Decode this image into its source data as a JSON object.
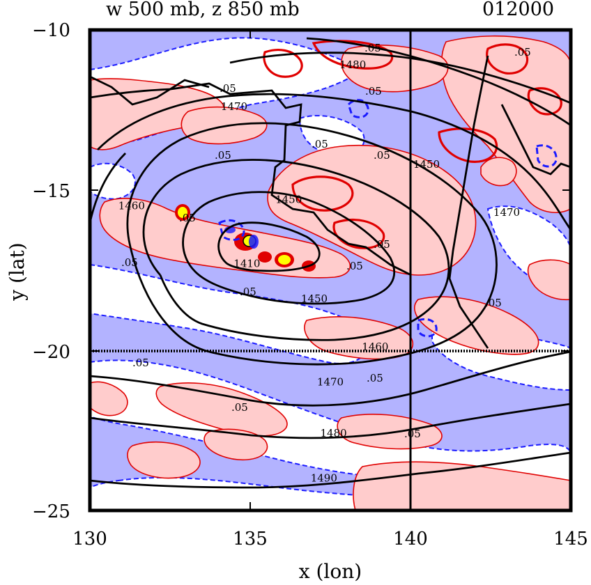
{
  "title_left": "w 500 mb, z 850 mb",
  "title_right": "012000",
  "x_axis": {
    "label": "x (lon)",
    "ticks": [
      "130",
      "135",
      "140",
      "145"
    ],
    "range": [
      130,
      145
    ]
  },
  "y_axis": {
    "label": "y (lat)",
    "ticks": [
      "−10",
      "−15",
      "−20",
      "−25"
    ],
    "range": [
      -25,
      -10
    ]
  },
  "reference_lines": {
    "lon": 140,
    "lat": -20
  },
  "colors": {
    "upward_fill": "#ffcccc",
    "downward_fill": "#b3b3ff",
    "upward_contour": "#e00000",
    "downward_contour": "#1a1aff",
    "height_contour": "#000000",
    "strong_upward": "#ffff00"
  },
  "w_contour_labels": [
    ".05",
    ".05",
    ".05",
    ".05",
    ".05",
    ".05",
    ".05",
    ".05",
    ".05",
    ".05",
    ".05",
    ".05",
    ".05",
    ".05",
    ".05",
    ".05",
    ".05"
  ],
  "height_contours": [
    {
      "value": "1410",
      "label_lon": 134.9,
      "label_lat": -17.4
    },
    {
      "value": "1450",
      "label_lon": 137.0,
      "label_lat": -18.5
    },
    {
      "value": "1460",
      "label_lon": 138.9,
      "label_lat": -20.0
    },
    {
      "value": "1470",
      "label_lon": 137.5,
      "label_lat": -21.1
    },
    {
      "value": "1480",
      "label_lon": 137.6,
      "label_lat": -22.7
    },
    {
      "value": "1490",
      "label_lon": 137.3,
      "label_lat": -24.1
    },
    {
      "value": "1450",
      "label_lon": 136.2,
      "label_lat": -15.4
    },
    {
      "value": "1460",
      "label_lon": 131.3,
      "label_lat": -15.6
    },
    {
      "value": "1470",
      "label_lon": 134.5,
      "label_lat": -12.5
    },
    {
      "value": "1480",
      "label_lon": 138.2,
      "label_lat": -11.2
    },
    {
      "value": "1450",
      "label_lon": 140.5,
      "label_lat": -14.3
    },
    {
      "value": "1470",
      "label_lon": 143.0,
      "label_lat": -15.8
    }
  ]
}
